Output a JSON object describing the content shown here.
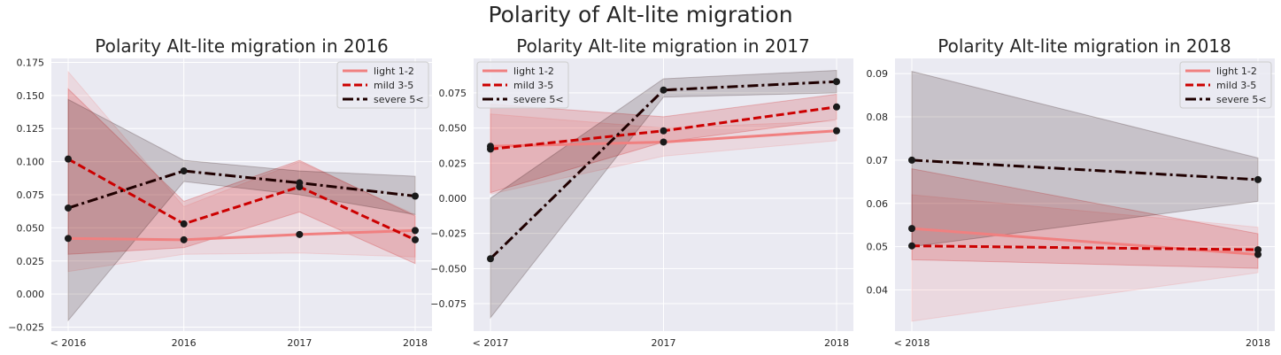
{
  "figure": {
    "title": "Polarity of Alt-lite migration"
  },
  "chart_data": [
    {
      "type": "line",
      "title": "Polarity Alt-lite migration in 2016",
      "x": [
        "< 2016",
        "2016",
        "2017",
        "2018"
      ],
      "ylim": [
        -0.028,
        0.178
      ],
      "yticks": [
        -0.025,
        0.0,
        0.025,
        0.05,
        0.075,
        0.1,
        0.125,
        0.15,
        0.175
      ],
      "ytick_labels": [
        "−0.025",
        "0.000",
        "0.025",
        "0.050",
        "0.075",
        "0.100",
        "0.125",
        "0.150",
        "0.175"
      ],
      "grid": true,
      "legend": "top-right",
      "series": [
        {
          "name": "light 1-2",
          "color": "#f08080",
          "style": "solid",
          "values": [
            0.042,
            0.041,
            0.045,
            0.048
          ],
          "ci_low": [
            0.017,
            0.03,
            0.031,
            0.028
          ],
          "ci_high": [
            0.168,
            0.066,
            0.1,
            0.06
          ]
        },
        {
          "name": "mild 3-5",
          "color": "#cc0000",
          "style": "dashed",
          "values": [
            0.102,
            0.053,
            0.081,
            0.041
          ],
          "ci_low": [
            0.03,
            0.035,
            0.062,
            0.023
          ],
          "ci_high": [
            0.155,
            0.07,
            0.101,
            0.059
          ]
        },
        {
          "name": "severe 5<",
          "color": "#1f0000",
          "style": "dashdot",
          "values": [
            0.065,
            0.093,
            0.084,
            0.074
          ],
          "ci_low": [
            -0.02,
            0.085,
            0.075,
            0.06
          ],
          "ci_high": [
            0.147,
            0.101,
            0.093,
            0.089
          ]
        }
      ]
    },
    {
      "type": "line",
      "title": "Polarity Alt-lite migration in 2017",
      "x": [
        "< 2017",
        "2017",
        "2018"
      ],
      "ylim": [
        -0.0945,
        0.0995
      ],
      "yticks": [
        -0.075,
        -0.05,
        -0.025,
        0.0,
        0.025,
        0.05,
        0.075
      ],
      "ytick_labels": [
        "−0.075",
        "−0.050",
        "−0.025",
        "0.000",
        "0.025",
        "0.050",
        "0.075"
      ],
      "grid": true,
      "legend": "top-left",
      "series": [
        {
          "name": "light 1-2",
          "color": "#f08080",
          "style": "solid",
          "values": [
            0.037,
            0.04,
            0.048
          ],
          "ci_low": [
            0.003,
            0.03,
            0.041
          ],
          "ci_high": [
            0.06,
            0.05,
            0.055
          ]
        },
        {
          "name": "mild 3-5",
          "color": "#cc0000",
          "style": "dashed",
          "values": [
            0.035,
            0.048,
            0.065
          ],
          "ci_low": [
            0.004,
            0.04,
            0.056
          ],
          "ci_high": [
            0.067,
            0.058,
            0.074
          ]
        },
        {
          "name": "severe 5<",
          "color": "#1f0000",
          "style": "dashdot",
          "values": [
            -0.043,
            0.077,
            0.083
          ],
          "ci_low": [
            -0.085,
            0.072,
            0.075
          ],
          "ci_high": [
            0.0,
            0.085,
            0.091
          ]
        }
      ]
    },
    {
      "type": "line",
      "title": "Polarity Alt-lite migration in 2018",
      "x": [
        "< 2018",
        "2018"
      ],
      "ylim": [
        0.0305,
        0.0935
      ],
      "yticks": [
        0.04,
        0.05,
        0.06,
        0.07,
        0.08,
        0.09
      ],
      "ytick_labels": [
        "0.04",
        "0.05",
        "0.06",
        "0.07",
        "0.08",
        "0.09"
      ],
      "grid": true,
      "legend": "top-right",
      "series": [
        {
          "name": "light 1-2",
          "color": "#f08080",
          "style": "solid",
          "values": [
            0.0542,
            0.0482
          ],
          "ci_low": [
            0.0328,
            0.044
          ],
          "ci_high": [
            0.062,
            0.0545
          ]
        },
        {
          "name": "mild 3-5",
          "color": "#cc0000",
          "style": "dashed",
          "values": [
            0.0502,
            0.0493
          ],
          "ci_low": [
            0.047,
            0.045
          ],
          "ci_high": [
            0.068,
            0.053
          ]
        },
        {
          "name": "severe 5<",
          "color": "#1f0000",
          "style": "dashdot",
          "values": [
            0.07,
            0.0655
          ],
          "ci_low": [
            0.05,
            0.0605
          ],
          "ci_high": [
            0.0905,
            0.0705
          ]
        }
      ]
    }
  ]
}
